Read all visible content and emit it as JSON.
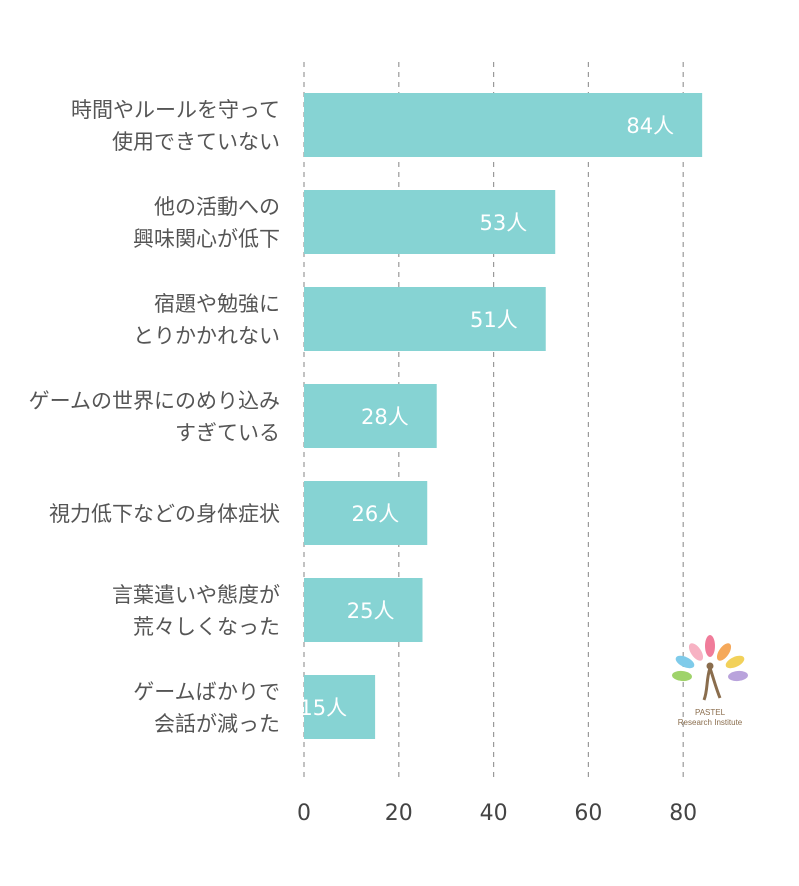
{
  "chart_data": {
    "type": "bar",
    "orientation": "horizontal",
    "categories": [
      [
        "時間やルールを守って",
        "使用できていない"
      ],
      [
        "他の活動への",
        "興味関心が低下"
      ],
      [
        "宿題や勉強に",
        "とりかかれない"
      ],
      [
        "ゲームの世界にのめり込み",
        "すぎている"
      ],
      [
        "視力低下などの身体症状"
      ],
      [
        "言葉遣いや態度が",
        "荒々しくなった"
      ],
      [
        "ゲームばかりで",
        "会話が減った"
      ]
    ],
    "values": [
      84,
      53,
      51,
      28,
      26,
      25,
      15
    ],
    "data_labels": [
      "84人",
      "53人",
      "51人",
      "28人",
      "26人",
      "25人",
      "15人"
    ],
    "xlim": [
      0,
      92
    ],
    "xticks": [
      0,
      20,
      40,
      60,
      80
    ],
    "xtick_labels": [
      "0",
      "20",
      "40",
      "60",
      "80"
    ],
    "grid": "vertical-dashed",
    "bar_color": "#86d3d3",
    "title": "",
    "xlabel": "",
    "ylabel": ""
  },
  "logo": {
    "name": "PASTEL",
    "subtitle": "Research Institute"
  }
}
